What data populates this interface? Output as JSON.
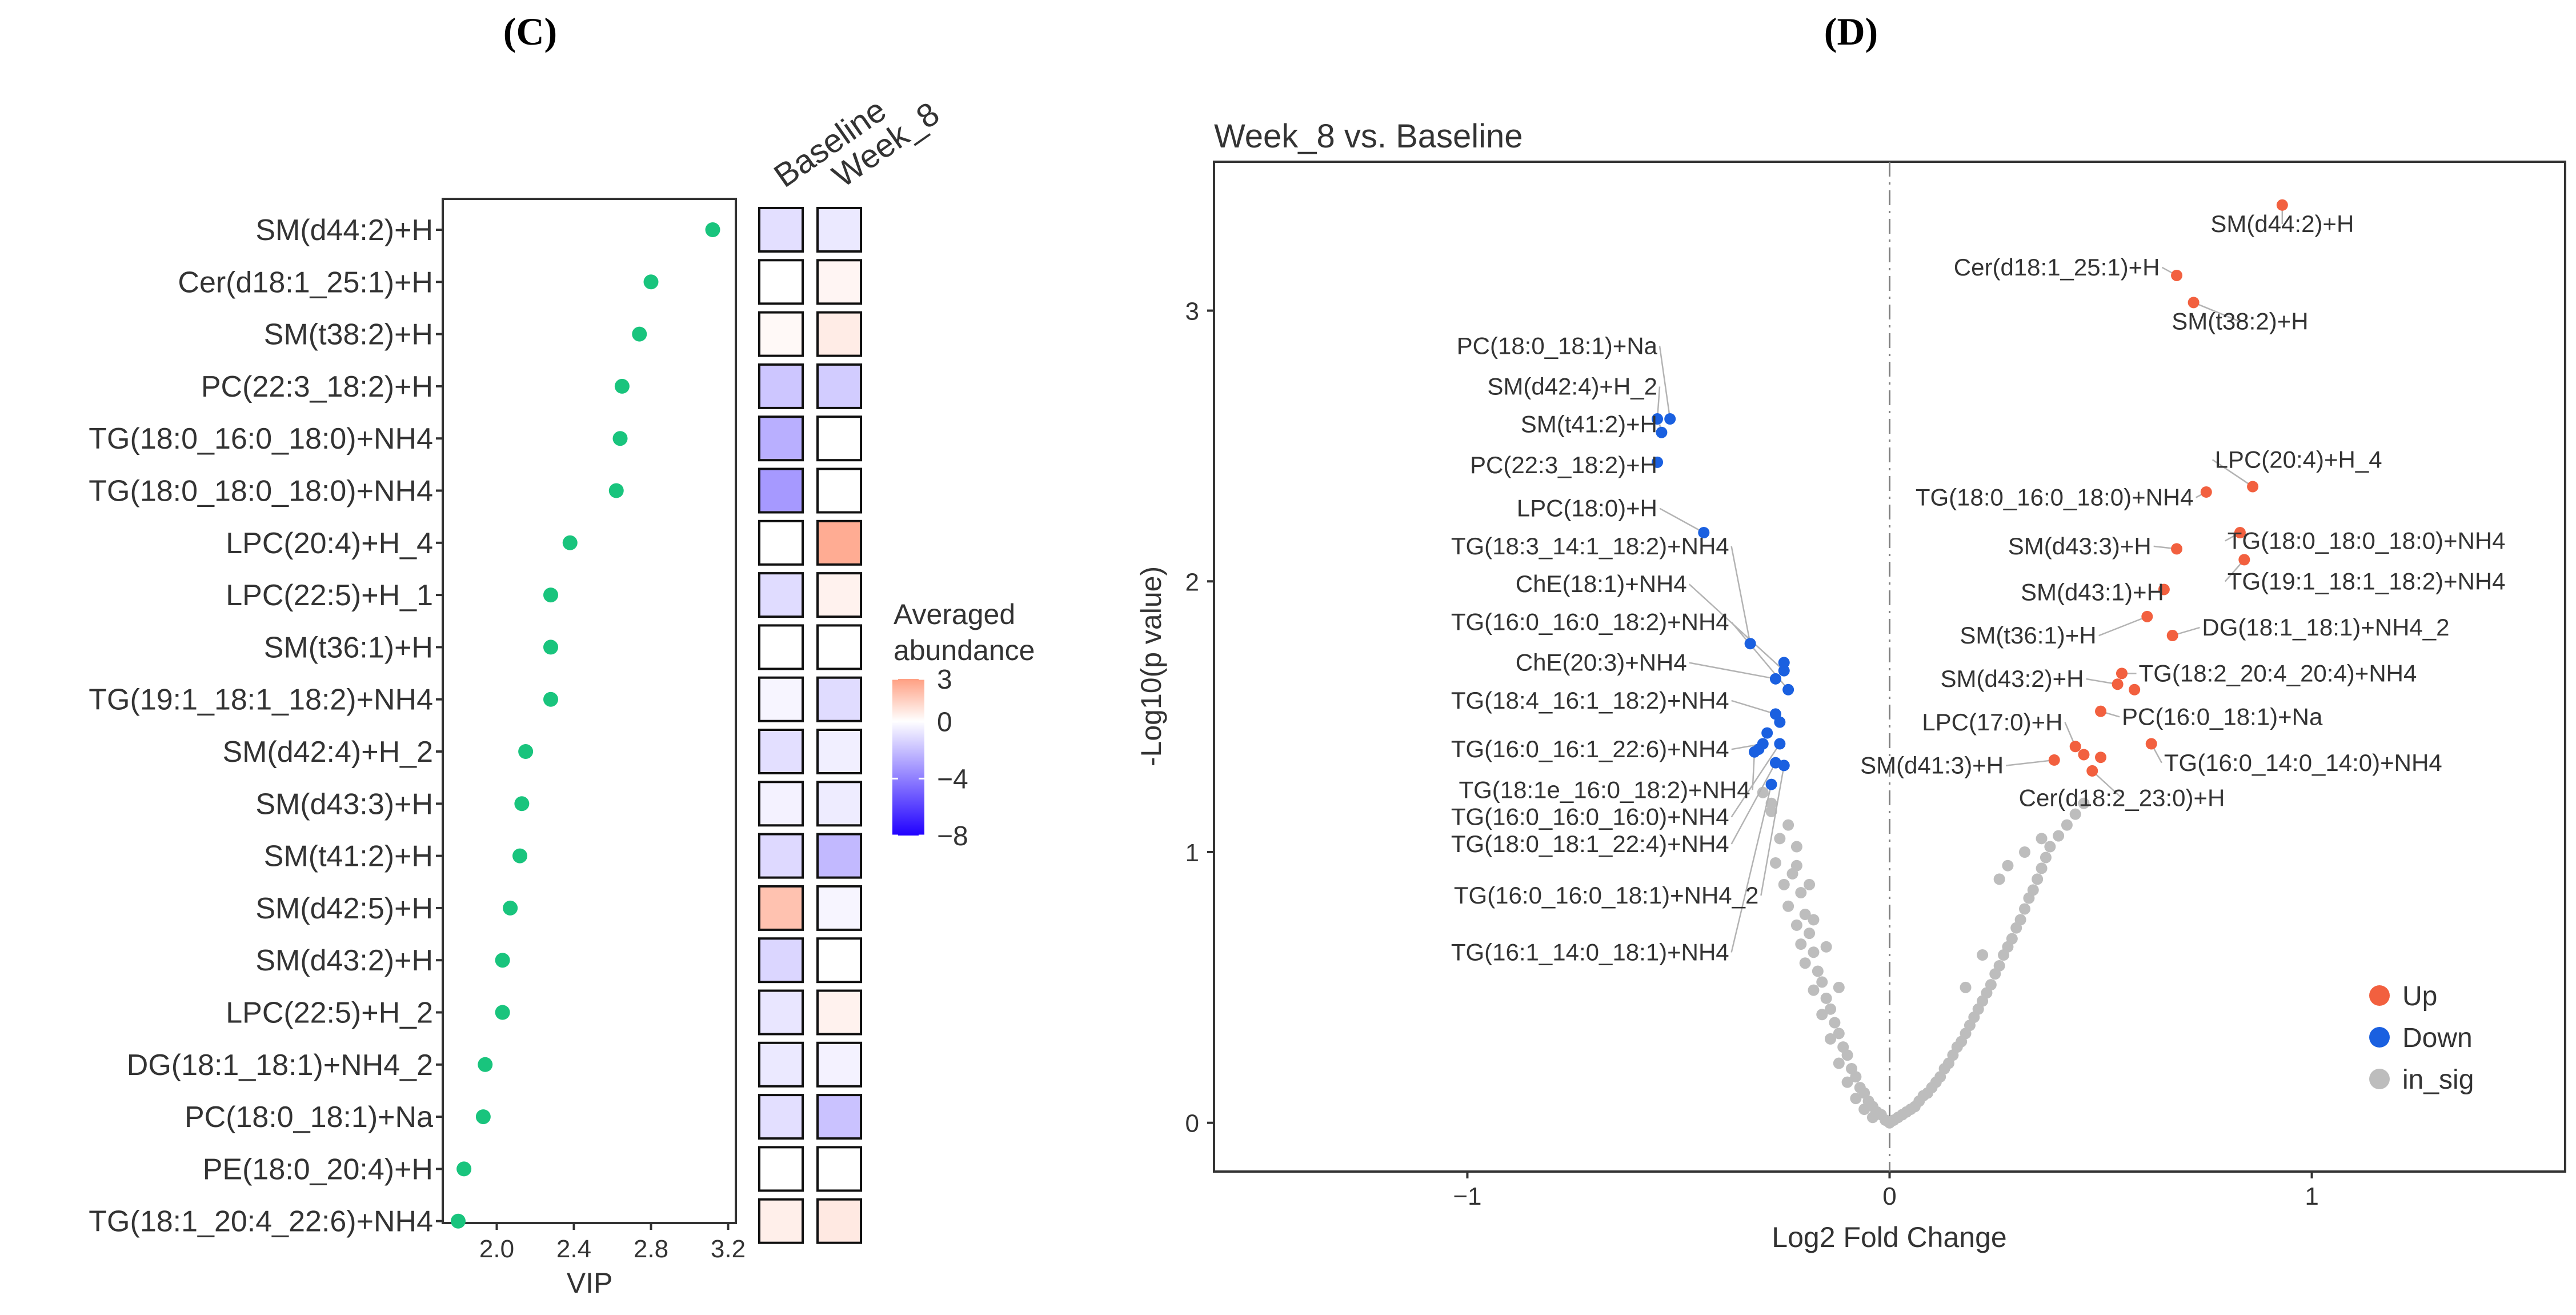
{
  "panels": {
    "C": {
      "label": "(C)"
    },
    "D": {
      "label": "(D)"
    }
  },
  "chart_data": [
    {
      "type": "scatter",
      "title": "",
      "xlabel": "VIP",
      "ylabel": "",
      "xlim": [
        1.72,
        3.24
      ],
      "xticks": [
        2.0,
        2.4,
        2.8,
        3.2
      ],
      "xtick_labels": [
        "2.0",
        "2.4",
        "2.8",
        "3.2"
      ],
      "point_color": "#19c47d",
      "grid": false,
      "categories": [
        "SM(d44:2)+H",
        "Cer(d18:1_25:1)+H",
        "SM(t38:2)+H",
        "PC(22:3_18:2)+H",
        "TG(18:0_16:0_18:0)+NH4",
        "TG(18:0_18:0_18:0)+NH4",
        "LPC(20:4)+H_4",
        "LPC(22:5)+H_1",
        "SM(t36:1)+H",
        "TG(19:1_18:1_18:2)+NH4",
        "SM(d42:4)+H_2",
        "SM(d43:3)+H",
        "SM(t41:2)+H",
        "SM(d42:5)+H",
        "SM(d43:2)+H",
        "LPC(22:5)+H_2",
        "DG(18:1_18:1)+NH4_2",
        "PC(18:0_18:1)+Na",
        "PE(18:0_20:4)+H",
        "TG(18:1_20:4_22:6)+NH4"
      ],
      "values": [
        3.12,
        2.8,
        2.74,
        2.65,
        2.64,
        2.62,
        2.38,
        2.28,
        2.28,
        2.28,
        2.15,
        2.13,
        2.12,
        2.07,
        2.03,
        2.03,
        1.94,
        1.93,
        1.83,
        1.8
      ]
    },
    {
      "type": "heatmap",
      "title": "",
      "columns": [
        "Baseline",
        "Week_8"
      ],
      "rows": [
        "SM(d44:2)+H",
        "Cer(d18:1_25:1)+H",
        "SM(t38:2)+H",
        "PC(22:3_18:2)+H",
        "TG(18:0_16:0_18:0)+NH4",
        "TG(18:0_18:0_18:0)+NH4",
        "LPC(20:4)+H_4",
        "LPC(22:5)+H_1",
        "SM(t36:1)+H",
        "TG(19:1_18:1_18:2)+NH4",
        "SM(d42:4)+H_2",
        "SM(d43:3)+H",
        "SM(t41:2)+H",
        "SM(d42:5)+H",
        "SM(d43:2)+H",
        "LPC(22:5)+H_2",
        "DG(18:1_18:1)+NH4_2",
        "PC(18:0_18:1)+Na",
        "PE(18:0_20:4)+H",
        "TG(18:1_20:4_22:6)+NH4"
      ],
      "values": [
        [
          -1.0,
          -0.7
        ],
        [
          0.0,
          0.3
        ],
        [
          0.2,
          0.6
        ],
        [
          -1.8,
          -1.6
        ],
        [
          -2.5,
          0.0
        ],
        [
          -3.2,
          0.0
        ],
        [
          0.0,
          2.6
        ],
        [
          -1.1,
          0.4
        ],
        [
          0.0,
          0.0
        ],
        [
          -0.3,
          -1.1
        ],
        [
          -1.0,
          -0.5
        ],
        [
          -0.4,
          -0.6
        ],
        [
          -1.2,
          -2.2
        ],
        [
          1.9,
          -0.3
        ],
        [
          -1.3,
          0.0
        ],
        [
          -0.8,
          0.4
        ],
        [
          -0.7,
          -0.4
        ],
        [
          -1.0,
          -1.9
        ],
        [
          0.0,
          0.0
        ],
        [
          0.5,
          0.7
        ]
      ],
      "legend": {
        "title_line1": "Averaged",
        "title_line2": "abundance",
        "ticks": [
          3,
          0,
          -4,
          -8
        ],
        "tick_labels": [
          "3",
          "0",
          "−4",
          "−8"
        ],
        "range": [
          -8,
          3
        ],
        "color_high": "#ff9f82",
        "color_mid": "#ffffff",
        "color_low": "#2000ff"
      }
    },
    {
      "type": "scatter",
      "title": "Week_8 vs. Baseline",
      "xlabel": "Log2 Fold Change",
      "ylabel": "-Log10(p value)",
      "xlim": [
        -1.6,
        1.6
      ],
      "ylim": [
        -0.18,
        3.55
      ],
      "xticks": [
        -1,
        0,
        1
      ],
      "xtick_labels": [
        "−1",
        "0",
        "1"
      ],
      "yticks": [
        0,
        1,
        2,
        3
      ],
      "ytick_labels": [
        "0",
        "1",
        "2",
        "3"
      ],
      "grid": false,
      "colors": {
        "up": "#f2603f",
        "down": "#1a60e0",
        "insig": "#bdbdbd",
        "leader": "#b3b3b3",
        "vline": "#808080"
      },
      "legend": [
        {
          "key": "up",
          "label": "Up"
        },
        {
          "key": "down",
          "label": "Down"
        },
        {
          "key": "insig",
          "label": "in_sig"
        }
      ],
      "up_points": [
        {
          "label": "SM(d44:2)+H",
          "x": 0.93,
          "y": 3.39,
          "lx": 0.93,
          "ly": 3.29,
          "anchor": "middle"
        },
        {
          "label": "Cer(d18:1_25:1)+H",
          "x": 0.68,
          "y": 3.13,
          "lx": 0.64,
          "ly": 3.13,
          "anchor": "end"
        },
        {
          "label": "SM(t38:2)+H",
          "x": 0.72,
          "y": 3.03,
          "lx": 0.83,
          "ly": 2.93,
          "anchor": "middle"
        },
        {
          "label": "LPC(20:4)+H_4",
          "x": 0.86,
          "y": 2.35,
          "lx": 0.77,
          "ly": 2.42,
          "anchor": "start"
        },
        {
          "label": "TG(18:0_16:0_18:0)+NH4",
          "x": 0.75,
          "y": 2.33,
          "lx": 0.72,
          "ly": 2.28,
          "anchor": "end"
        },
        {
          "label": "SM(d43:3)+H",
          "x": 0.68,
          "y": 2.12,
          "lx": 0.62,
          "ly": 2.1,
          "anchor": "end"
        },
        {
          "label": "TG(18:0_18:0_18:0)+NH4",
          "x": 0.83,
          "y": 2.18,
          "lx": 0.8,
          "ly": 2.12,
          "anchor": "start"
        },
        {
          "label": "TG(19:1_18:1_18:2)+NH4",
          "x": 0.84,
          "y": 2.08,
          "lx": 0.8,
          "ly": 1.97,
          "anchor": "start"
        },
        {
          "label": "SM(d43:1)+H",
          "x": 0.65,
          "y": 1.97,
          "lx": 0.65,
          "ly": 1.93,
          "anchor": "end"
        },
        {
          "label": "DG(18:1_18:1)+NH4_2",
          "x": 0.67,
          "y": 1.8,
          "lx": 0.74,
          "ly": 1.8,
          "anchor": "start"
        },
        {
          "label": "SM(t36:1)+H",
          "x": 0.61,
          "y": 1.87,
          "lx": 0.49,
          "ly": 1.77,
          "anchor": "end"
        },
        {
          "label": "TG(18:2_20:4_20:4)+NH4",
          "x": 0.55,
          "y": 1.66,
          "lx": 0.59,
          "ly": 1.63,
          "anchor": "start"
        },
        {
          "label": "SM(d43:2)+H",
          "x": 0.54,
          "y": 1.62,
          "lx": 0.46,
          "ly": 1.61,
          "anchor": "end"
        },
        {
          "label": "PC(16:0_18:1)+Na",
          "x": 0.5,
          "y": 1.52,
          "lx": 0.55,
          "ly": 1.47,
          "anchor": "start"
        },
        {
          "label": "LPC(17:0)+H",
          "x": 0.44,
          "y": 1.39,
          "lx": 0.41,
          "ly": 1.45,
          "anchor": "end"
        },
        {
          "label": "SM(d41:3)+H",
          "x": 0.39,
          "y": 1.34,
          "lx": 0.27,
          "ly": 1.29,
          "anchor": "end"
        },
        {
          "label": "TG(16:0_14:0_14:0)+NH4",
          "x": 0.62,
          "y": 1.4,
          "lx": 0.65,
          "ly": 1.3,
          "anchor": "start"
        },
        {
          "label": "Cer(d18:2_23:0)+H",
          "x": 0.48,
          "y": 1.3,
          "lx": 0.55,
          "ly": 1.17,
          "anchor": "middle"
        }
      ],
      "up_unlabeled": [
        {
          "x": 0.46,
          "y": 1.36
        },
        {
          "x": 0.5,
          "y": 1.35
        },
        {
          "x": 0.58,
          "y": 1.6
        }
      ],
      "down_points": [
        {
          "label": "PC(18:0_18:1)+Na",
          "x": -0.52,
          "y": 2.6,
          "lx": -0.55,
          "ly": 2.84,
          "anchor": "end"
        },
        {
          "label": "SM(d42:4)+H_2",
          "x": -0.55,
          "y": 2.6,
          "lx": -0.55,
          "ly": 2.69,
          "anchor": "end"
        },
        {
          "label": "SM(t41:2)+H",
          "x": -0.54,
          "y": 2.55,
          "lx": -0.55,
          "ly": 2.55,
          "anchor": "end"
        },
        {
          "label": "PC(22:3_18:2)+H",
          "x": -0.55,
          "y": 2.44,
          "lx": -0.55,
          "ly": 2.4,
          "anchor": "end"
        },
        {
          "label": "LPC(18:0)+H",
          "x": -0.44,
          "y": 2.18,
          "lx": -0.55,
          "ly": 2.24,
          "anchor": "end"
        },
        {
          "label": "TG(18:3_14:1_18:2)+NH4",
          "x": -0.33,
          "y": 1.77,
          "lx": -0.38,
          "ly": 2.1,
          "anchor": "end"
        },
        {
          "label": "ChE(18:1)+NH4",
          "x": -0.25,
          "y": 1.67,
          "lx": -0.48,
          "ly": 1.96,
          "anchor": "end"
        },
        {
          "label": "TG(16:0_16:0_18:2)+NH4",
          "x": -0.24,
          "y": 1.6,
          "lx": -0.38,
          "ly": 1.82,
          "anchor": "end"
        },
        {
          "label": "ChE(20:3)+NH4",
          "x": -0.27,
          "y": 1.64,
          "lx": -0.48,
          "ly": 1.67,
          "anchor": "end"
        },
        {
          "label": "TG(18:4_16:1_18:2)+NH4",
          "x": -0.27,
          "y": 1.51,
          "lx": -0.38,
          "ly": 1.53,
          "anchor": "end"
        },
        {
          "label": "TG(16:0_16:1_22:6)+NH4",
          "x": -0.3,
          "y": 1.4,
          "lx": -0.38,
          "ly": 1.35,
          "anchor": "end"
        },
        {
          "label": "TG(18:1e_16:0_18:2)+NH4",
          "x": -0.32,
          "y": 1.37,
          "lx": -0.33,
          "ly": 1.2,
          "anchor": "end"
        },
        {
          "label": "TG(16:0_16:0_16:0)+NH4",
          "x": -0.26,
          "y": 1.4,
          "lx": -0.38,
          "ly": 1.1,
          "anchor": "end"
        },
        {
          "label": "TG(18:0_18:1_22:4)+NH4",
          "x": -0.27,
          "y": 1.33,
          "lx": -0.38,
          "ly": 1.0,
          "anchor": "end"
        },
        {
          "label": "TG(16:0_16:0_18:1)+NH4_2",
          "x": -0.25,
          "y": 1.32,
          "lx": -0.31,
          "ly": 0.81,
          "anchor": "end"
        },
        {
          "label": "TG(16:1_14:0_18:1)+NH4",
          "x": -0.28,
          "y": 1.25,
          "lx": -0.38,
          "ly": 0.6,
          "anchor": "end"
        }
      ],
      "down_unlabeled": [
        {
          "x": -0.26,
          "y": 1.48
        },
        {
          "x": -0.29,
          "y": 1.44
        },
        {
          "x": -0.25,
          "y": 1.7
        },
        {
          "x": -0.31,
          "y": 1.38
        }
      ],
      "insig_points": [
        [
          -0.3,
          1.22
        ],
        [
          -0.28,
          1.15
        ],
        [
          -0.24,
          1.1
        ],
        [
          -0.26,
          1.05
        ],
        [
          -0.22,
          1.02
        ],
        [
          -0.27,
          0.96
        ],
        [
          -0.23,
          0.92
        ],
        [
          -0.25,
          0.88
        ],
        [
          -0.21,
          0.85
        ],
        [
          -0.24,
          0.8
        ],
        [
          -0.2,
          0.77
        ],
        [
          -0.22,
          0.73
        ],
        [
          -0.19,
          0.7
        ],
        [
          -0.21,
          0.66
        ],
        [
          -0.18,
          0.63
        ],
        [
          -0.2,
          0.59
        ],
        [
          -0.17,
          0.56
        ],
        [
          -0.16,
          0.52
        ],
        [
          -0.18,
          0.49
        ],
        [
          -0.15,
          0.46
        ],
        [
          -0.14,
          0.42
        ],
        [
          -0.16,
          0.4
        ],
        [
          -0.13,
          0.37
        ],
        [
          -0.12,
          0.33
        ],
        [
          -0.14,
          0.31
        ],
        [
          -0.11,
          0.28
        ],
        [
          -0.1,
          0.25
        ],
        [
          -0.12,
          0.22
        ],
        [
          -0.09,
          0.2
        ],
        [
          -0.08,
          0.17
        ],
        [
          -0.1,
          0.15
        ],
        [
          -0.07,
          0.13
        ],
        [
          -0.06,
          0.11
        ],
        [
          -0.08,
          0.09
        ],
        [
          -0.05,
          0.08
        ],
        [
          -0.04,
          0.06
        ],
        [
          -0.06,
          0.05
        ],
        [
          -0.03,
          0.04
        ],
        [
          -0.02,
          0.03
        ],
        [
          -0.04,
          0.02
        ],
        [
          -0.01,
          0.01
        ],
        [
          0.0,
          0.0
        ],
        [
          0.01,
          0.01
        ],
        [
          0.02,
          0.02
        ],
        [
          0.03,
          0.03
        ],
        [
          0.04,
          0.04
        ],
        [
          0.05,
          0.05
        ],
        [
          0.06,
          0.06
        ],
        [
          0.07,
          0.08
        ],
        [
          0.08,
          0.1
        ],
        [
          0.09,
          0.11
        ],
        [
          0.1,
          0.13
        ],
        [
          0.11,
          0.15
        ],
        [
          0.12,
          0.17
        ],
        [
          0.13,
          0.2
        ],
        [
          0.14,
          0.22
        ],
        [
          0.15,
          0.25
        ],
        [
          0.16,
          0.28
        ],
        [
          0.17,
          0.3
        ],
        [
          0.18,
          0.33
        ],
        [
          0.19,
          0.36
        ],
        [
          0.2,
          0.39
        ],
        [
          0.21,
          0.42
        ],
        [
          0.22,
          0.45
        ],
        [
          0.23,
          0.48
        ],
        [
          0.24,
          0.51
        ],
        [
          0.25,
          0.55
        ],
        [
          0.26,
          0.58
        ],
        [
          0.27,
          0.62
        ],
        [
          0.28,
          0.65
        ],
        [
          0.29,
          0.68
        ],
        [
          0.3,
          0.72
        ],
        [
          0.31,
          0.75
        ],
        [
          0.32,
          0.79
        ],
        [
          0.33,
          0.83
        ],
        [
          0.34,
          0.86
        ],
        [
          0.35,
          0.9
        ],
        [
          0.36,
          0.94
        ],
        [
          0.37,
          0.98
        ],
        [
          0.38,
          1.02
        ],
        [
          0.4,
          1.06
        ],
        [
          0.42,
          1.1
        ],
        [
          0.44,
          1.14
        ],
        [
          0.46,
          1.18
        ],
        [
          0.26,
          0.9
        ],
        [
          0.28,
          0.95
        ],
        [
          0.22,
          0.62
        ],
        [
          0.18,
          0.5
        ],
        [
          0.32,
          1.0
        ],
        [
          0.36,
          1.05
        ],
        [
          -0.15,
          0.65
        ],
        [
          -0.18,
          0.75
        ],
        [
          -0.12,
          0.5
        ],
        [
          -0.22,
          0.95
        ],
        [
          -0.19,
          0.88
        ],
        [
          -0.28,
          1.18
        ]
      ]
    }
  ]
}
